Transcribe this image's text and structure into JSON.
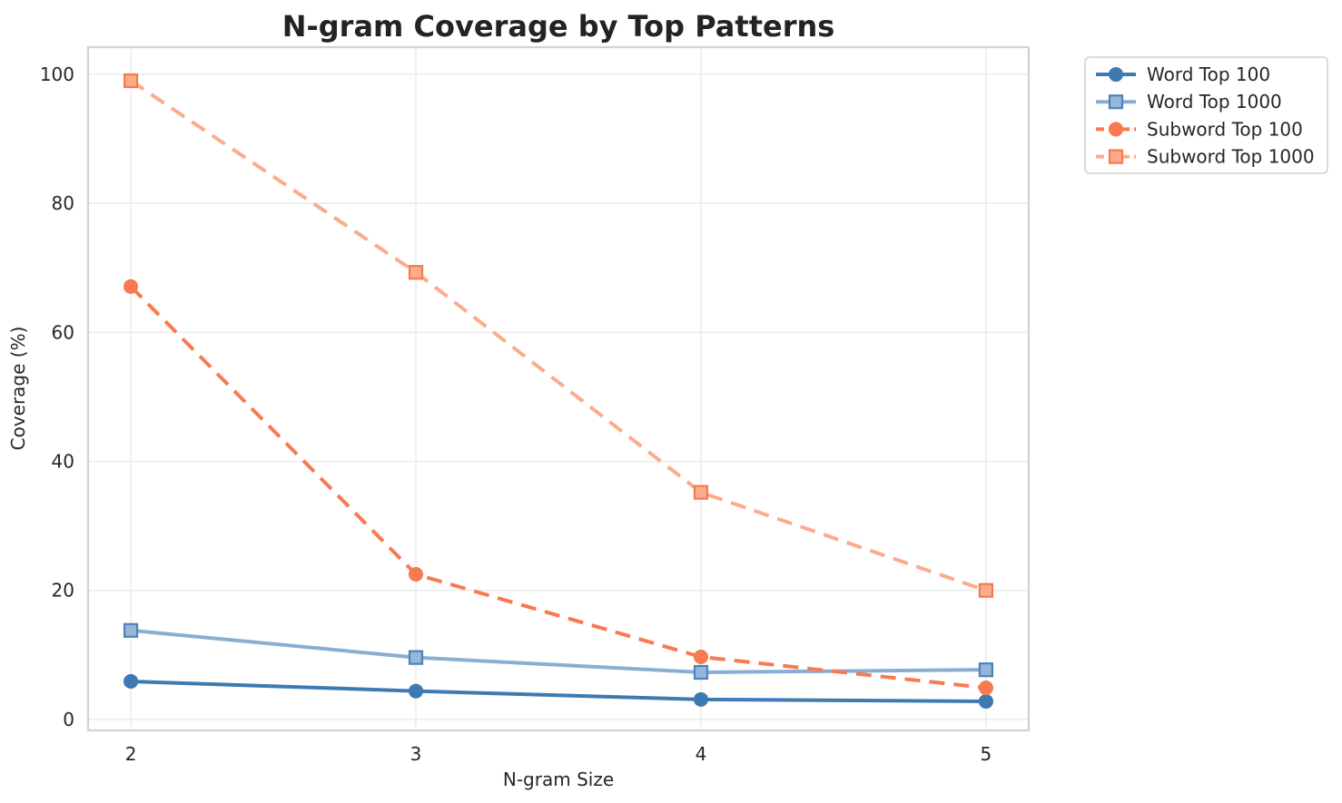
{
  "chart_data": {
    "type": "line",
    "title": "N-gram Coverage by Top Patterns",
    "xlabel": "N-gram Size",
    "ylabel": "Coverage (%)",
    "x": [
      2,
      3,
      4,
      5
    ],
    "x_tick_labels": [
      "2",
      "3",
      "4",
      "5"
    ],
    "y_tick_values": [
      0,
      20,
      40,
      60,
      80,
      100
    ],
    "y_tick_labels": [
      "0",
      "20",
      "40",
      "60",
      "80",
      "100"
    ],
    "xlim": [
      1.85,
      5.15
    ],
    "ylim": [
      -1.7,
      104.2
    ],
    "grid": true,
    "legend_position": "outside upper right",
    "series": [
      {
        "name": "Word Top 100",
        "values": [
          5.9,
          4.4,
          3.1,
          2.8
        ],
        "color": "#3d7ab2",
        "marker": "circle",
        "marker_fill": "#3d7ab2",
        "marker_edge": "#3d7ab2",
        "dash": null
      },
      {
        "name": "Word Top 1000",
        "values": [
          13.8,
          9.6,
          7.3,
          7.7
        ],
        "color": "#88aed3",
        "marker": "square",
        "marker_fill": "#93b7d8",
        "marker_edge": "#4d82ba",
        "dash": null
      },
      {
        "name": "Subword Top 100",
        "values": [
          67.1,
          22.5,
          9.7,
          4.9
        ],
        "color": "#f97950",
        "marker": "circle",
        "marker_fill": "#f97950",
        "marker_edge": "#f97950",
        "dash": [
          17,
          10
        ]
      },
      {
        "name": "Subword Top 1000",
        "values": [
          99.0,
          69.3,
          35.2,
          20.0
        ],
        "color": "#fcab8b",
        "marker": "square",
        "marker_fill": "#fcab8b",
        "marker_edge": "#f7794f",
        "dash": [
          17,
          10
        ]
      }
    ],
    "style": {
      "background": "#ffffff",
      "grid_color": "#ececec",
      "spine_color": "#d2d2d2",
      "text_color": "#262626",
      "title_color": "#232323",
      "legend_border": "#d2d2d2",
      "legend_background": "#ffffff"
    }
  }
}
